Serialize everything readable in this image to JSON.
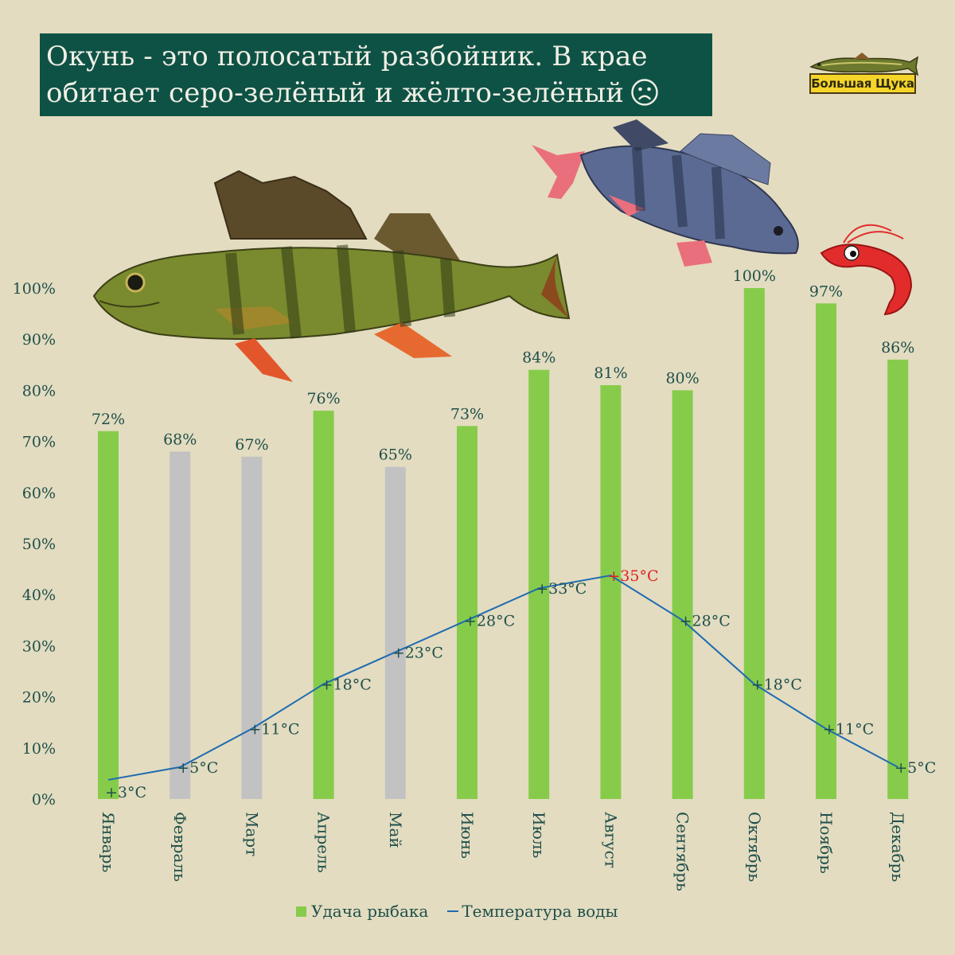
{
  "title": {
    "line1": "Окунь - это полосатый разбойник. В крае",
    "line2": "обитает серо-зелёный и жёлто-зелёный"
  },
  "logo": {
    "text": "Большая Щука"
  },
  "colors": {
    "bar_good": "#86cc4a",
    "bar_bad": "#c3c2c2",
    "temperature_line": "#1e6bb0",
    "label_text": "#1f4f4a",
    "highlight": "#e02020",
    "title_bg": "#0e5245"
  },
  "chart_data": {
    "type": "bar",
    "categories": [
      "Январь",
      "Февраль",
      "Март",
      "Апрель",
      "Май",
      "Июнь",
      "Июль",
      "Август",
      "Сентябрь",
      "Октябрь",
      "Ноябрь",
      "Декабрь"
    ],
    "ylim": [
      0,
      100
    ],
    "yticks": [
      "0%",
      "10%",
      "20%",
      "30%",
      "40%",
      "50%",
      "60%",
      "70%",
      "80%",
      "90%",
      "100%"
    ],
    "series": [
      {
        "name": "Удача рыбака",
        "type": "bar",
        "values": [
          72,
          68,
          67,
          76,
          65,
          73,
          84,
          81,
          80,
          100,
          97,
          86
        ],
        "labels": [
          "72%",
          "68%",
          "67%",
          "76%",
          "65%",
          "73%",
          "84%",
          "81%",
          "80%",
          "100%",
          "97%",
          "86%"
        ],
        "bar_color": [
          "green",
          "gray",
          "gray",
          "green",
          "gray",
          "green",
          "green",
          "green",
          "green",
          "green",
          "green",
          "green"
        ]
      },
      {
        "name": "Температура воды",
        "type": "line",
        "values": [
          3,
          5,
          11,
          18,
          23,
          28,
          33,
          35,
          28,
          18,
          11,
          5
        ],
        "labels": [
          "+3°C",
          "+5°C",
          "+11°C",
          "+18°C",
          "+23°C",
          "+28°C",
          "+33°C",
          "+35°C",
          "+28°C",
          "+18°C",
          "+11°C",
          "+5°C"
        ],
        "highlight_index": 7
      }
    ],
    "legend": "bottom"
  }
}
